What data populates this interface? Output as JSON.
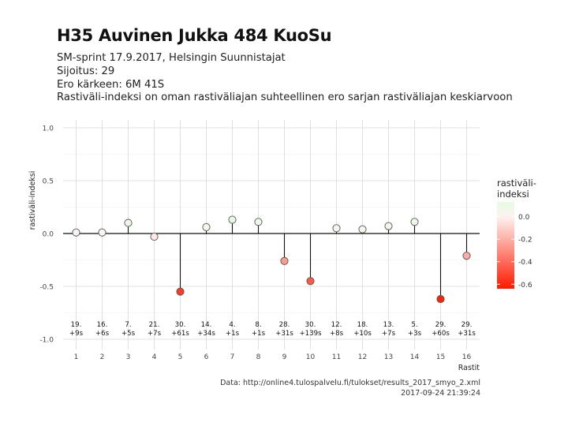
{
  "header": {
    "title": "H35 Auvinen Jukka 484 KuoSu",
    "subtitle_lines": [
      "SM-sprint 17.9.2017, Helsingin Suunnistajat",
      "Sijoitus: 29",
      "Ero kärkeen: 6M 41S",
      "Rastiväli-indeksi on oman rastiväliajan suhteellinen ero sarjan rastiväliajan keskiarvoon"
    ]
  },
  "footer": {
    "source": "Data: http://online4.tulospalvelu.fi/tulokset/results_2017_smyo_2.xml",
    "timestamp": "2017-09-24 21:39:24"
  },
  "chart_data": {
    "type": "scatter",
    "style": "lollipop",
    "xlabel": "Rastit",
    "ylabel": "rastiväli-indeksi",
    "xlim": [
      0.5,
      16.5
    ],
    "ylim": [
      -1.0,
      1.0
    ],
    "x_ticks": [
      1,
      2,
      3,
      4,
      5,
      6,
      7,
      8,
      9,
      10,
      11,
      12,
      13,
      14,
      15,
      16
    ],
    "y_ticks": [
      -1.0,
      -0.5,
      0.0,
      0.5,
      1.0
    ],
    "y_tick_labels": [
      "-1.0",
      "-0.5",
      "0.0",
      "0.5",
      "1.0"
    ],
    "grid": true,
    "baseline": 0.0,
    "points": [
      {
        "x": 1,
        "y": 0.01,
        "rank": "19.",
        "diff": "+9s"
      },
      {
        "x": 2,
        "y": 0.01,
        "rank": "16.",
        "diff": "+6s"
      },
      {
        "x": 3,
        "y": 0.1,
        "rank": "7.",
        "diff": "+5s"
      },
      {
        "x": 4,
        "y": -0.03,
        "rank": "21.",
        "diff": "+7s"
      },
      {
        "x": 5,
        "y": -0.55,
        "rank": "30.",
        "diff": "+61s"
      },
      {
        "x": 6,
        "y": 0.06,
        "rank": "14.",
        "diff": "+34s"
      },
      {
        "x": 7,
        "y": 0.13,
        "rank": "4.",
        "diff": "+1s"
      },
      {
        "x": 8,
        "y": 0.11,
        "rank": "8.",
        "diff": "+1s"
      },
      {
        "x": 9,
        "y": -0.26,
        "rank": "28.",
        "diff": "+31s"
      },
      {
        "x": 10,
        "y": -0.45,
        "rank": "30.",
        "diff": "+139s"
      },
      {
        "x": 11,
        "y": 0.05,
        "rank": "12.",
        "diff": "+8s"
      },
      {
        "x": 12,
        "y": 0.04,
        "rank": "18.",
        "diff": "+10s"
      },
      {
        "x": 13,
        "y": 0.07,
        "rank": "13.",
        "diff": "+7s"
      },
      {
        "x": 14,
        "y": 0.11,
        "rank": "5.",
        "diff": "+3s"
      },
      {
        "x": 15,
        "y": -0.62,
        "rank": "29.",
        "diff": "+60s"
      },
      {
        "x": 16,
        "y": -0.21,
        "rank": "29.",
        "diff": "+31s"
      }
    ],
    "legend": {
      "title_lines": [
        "rastiväli-",
        "indeksi"
      ],
      "ticks": [
        0.0,
        -0.2,
        -0.4,
        -0.6
      ],
      "tick_labels": [
        "0.0",
        "-0.2",
        "-0.4",
        "-0.6"
      ],
      "range": [
        -0.64,
        0.13
      ],
      "placement": "right"
    },
    "colors": {
      "high": "#e6fbe2",
      "mid": "#fdf3f1",
      "low": "#ff1a00",
      "point_outline": "#555555",
      "stem": "#111111",
      "grid": "#d9d9d9"
    }
  }
}
